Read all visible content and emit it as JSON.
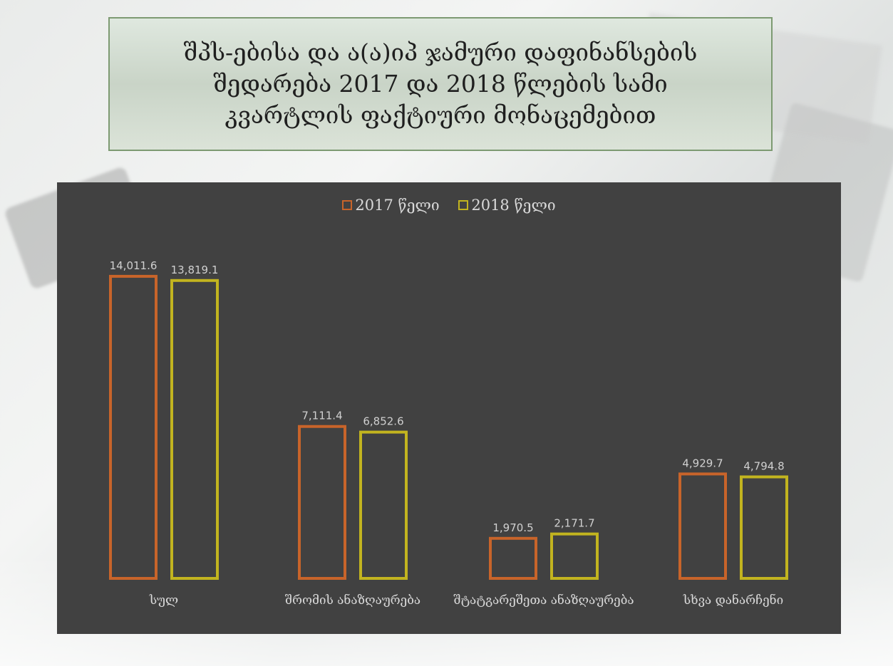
{
  "title": "შპს-ებისა და ა(ა)იპ ჯამური დაფინანსების შედარება 2017 და 2018 წლების სამი კვარტლის ფაქტიური მონაცემებით",
  "chart_data": {
    "type": "bar",
    "categories": [
      "სულ",
      "შრომის ანაზღაურება",
      "შტატგარეშეთა ანაზღაურება",
      "სხვა დანარჩენი"
    ],
    "series": [
      {
        "name": "2017 წელი",
        "values": [
          14011.6,
          7111.4,
          1970.5,
          4929.7
        ],
        "labels": [
          "14,011.6",
          "7,111.4",
          "1,970.5",
          "4,929.7"
        ],
        "color": "#c8642a"
      },
      {
        "name": "2018 წელი",
        "values": [
          13819.1,
          6852.6,
          2171.7,
          4794.8
        ],
        "labels": [
          "13,819.1",
          "6,852.6",
          "2,171.7",
          "4,794.8"
        ],
        "color": "#c2b41f"
      }
    ],
    "ylim": [
      0,
      14500
    ],
    "grid": false,
    "legend_position": "top"
  }
}
